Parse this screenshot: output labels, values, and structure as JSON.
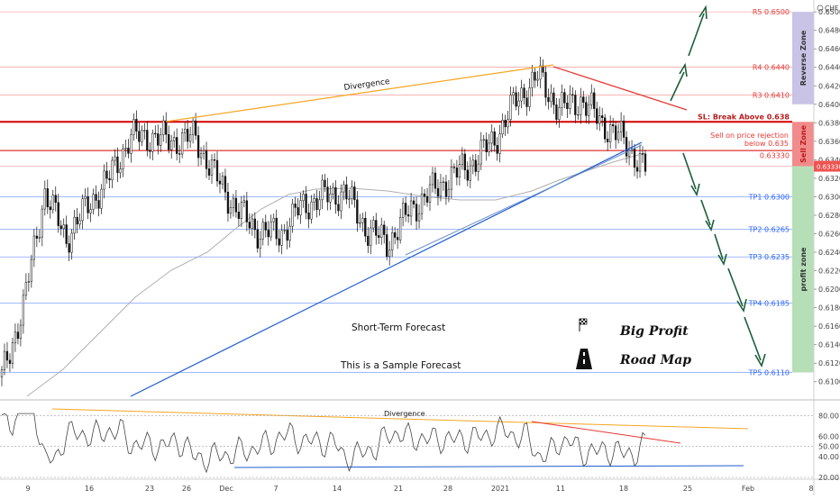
{
  "chart_data": [
    {
      "type": "candlestick",
      "symbol": "CHF",
      "ylim": [
        0.609,
        0.6505
      ],
      "y_ticks": [
        "0.65000",
        "0.64800",
        "0.64600",
        "0.64400",
        "0.64200",
        "0.64000",
        "0.63800",
        "0.63600",
        "0.63400",
        "0.63200",
        "0.63000",
        "0.62800",
        "0.62600",
        "0.62400",
        "0.62200",
        "0.62000",
        "0.61800",
        "0.61600",
        "0.61400",
        "0.61200",
        "0.61000"
      ],
      "y_tick_values": [
        0.65,
        0.648,
        0.646,
        0.644,
        0.642,
        0.64,
        0.638,
        0.636,
        0.634,
        0.632,
        0.63,
        0.628,
        0.626,
        0.624,
        0.622,
        0.62,
        0.618,
        0.616,
        0.614,
        0.612,
        0.61
      ],
      "x_ticks": [
        "9",
        "16",
        "23",
        "26",
        "Dec",
        "7",
        "14",
        "21",
        "28",
        "2021",
        "11",
        "18",
        "25",
        "Feb",
        "8"
      ],
      "last_price": "0.63330",
      "levels": [
        {
          "label": "R5 0.6500",
          "value": 0.65,
          "color": "#ef5350"
        },
        {
          "label": "R4 0.6440",
          "value": 0.644,
          "color": "#ef5350"
        },
        {
          "label": "R3 0.6410",
          "value": 0.641,
          "color": "#ef5350"
        },
        {
          "label": "SL: Break Above 0.638",
          "value": 0.6381,
          "color": "#d50000"
        },
        {
          "label": "Sell on price rejection",
          "label2": "below 0.635",
          "value": 0.635,
          "color": "#d50000"
        },
        {
          "label": "0.63330",
          "value": 0.6333,
          "color": "#e57373"
        },
        {
          "label": "TP1 0.6300",
          "value": 0.63,
          "color": "#2962ff"
        },
        {
          "label": "TP2 0.6265",
          "value": 0.6265,
          "color": "#2962ff"
        },
        {
          "label": "TP3 0.6235",
          "value": 0.6235,
          "color": "#2962ff"
        },
        {
          "label": "TP4 0.6185",
          "value": 0.6185,
          "color": "#2962ff"
        },
        {
          "label": "TP5 0.6110",
          "value": 0.611,
          "color": "#2962ff"
        }
      ],
      "zones": [
        {
          "label": "Reverse Zone",
          "from": 0.64,
          "to": 0.65,
          "color": "#c9c3e6"
        },
        {
          "label": "Sell Zone",
          "from": 0.6333,
          "to": 0.6381,
          "color": "#f28b8b"
        },
        {
          "label": "profit zone",
          "from": 0.611,
          "to": 0.6333,
          "color": "#b6dfb8"
        }
      ],
      "annotations": {
        "divergence_price": "Divergence",
        "short_term": "Short-Term Forecast",
        "sample": "This is a Sample Forecast",
        "big_profit": "Big Profit",
        "road_map": "Road Map"
      },
      "series": [
        {
          "name": "price_path",
          "x": [
            0,
            4,
            8,
            12,
            16,
            20,
            24,
            28,
            32,
            36,
            40,
            44,
            48,
            52,
            56,
            60,
            64,
            68,
            72,
            76,
            80,
            84,
            88,
            92,
            96,
            100,
            104,
            108,
            112,
            116,
            120
          ],
          "values": [
            0.6105,
            0.618,
            0.6305,
            0.6255,
            0.629,
            0.632,
            0.6365,
            0.6365,
            0.636,
            0.6365,
            0.632,
            0.6285,
            0.6262,
            0.626,
            0.629,
            0.63,
            0.6305,
            0.6265,
            0.625,
            0.6285,
            0.6305,
            0.6322,
            0.6338,
            0.6362,
            0.6405,
            0.643,
            0.6395,
            0.6405,
            0.638,
            0.636,
            0.633
          ]
        }
      ]
    },
    {
      "type": "line",
      "indicator": "RSI",
      "ylim": [
        20,
        90
      ],
      "y_ticks": [
        "80.00",
        "60.00",
        "50.00",
        "40.00",
        "20.00"
      ],
      "y_tick_values": [
        80,
        60,
        50,
        40,
        20
      ],
      "label": "Divergence"
    }
  ]
}
